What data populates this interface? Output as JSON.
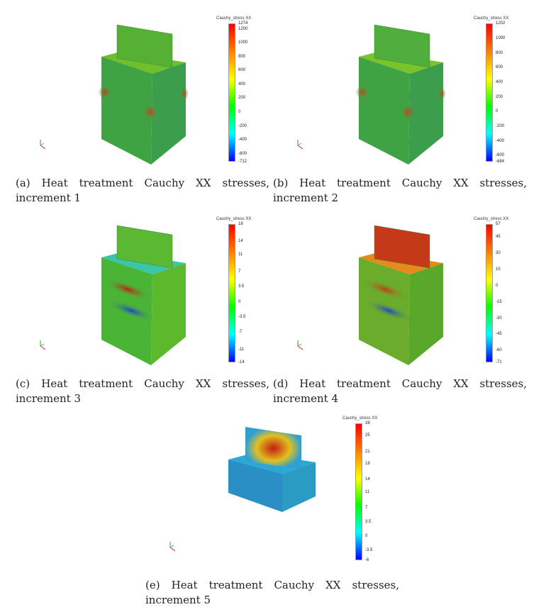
{
  "figures": [
    {
      "label": "(a)",
      "caption_line1": "(a) Heat treatment Cauchy XX stresses,",
      "caption_line2": "increment 1",
      "colorbar": {
        "title": "Cauchy_stress XX",
        "ticks": [
          "1274",
          "1200",
          "1000",
          "800",
          "600",
          "400",
          "200",
          "0",
          "-200",
          "-400",
          "-600",
          "-712"
        ],
        "min": -712,
        "max": 1274
      },
      "colors": {
        "top": "#6fbe2c",
        "left": "#3fa343",
        "right": "#3c9e4c",
        "plate": "#55b033",
        "hot": "#c8401c"
      }
    },
    {
      "label": "(b)",
      "caption_line1": "(b) Heat treatment Cauchy XX stresses,",
      "caption_line2": "increment 2",
      "colorbar": {
        "title": "Cauchy_stress XX",
        "ticks": [
          "1202",
          "1000",
          "800",
          "600",
          "400",
          "200",
          "0",
          "-200",
          "-400",
          "-600",
          "-684"
        ],
        "min": -684,
        "max": 1202
      },
      "colors": {
        "top": "#79c42a",
        "left": "#3fa343",
        "right": "#3c9e4c",
        "plate": "#4fae3c",
        "hot": "#c8401c"
      }
    },
    {
      "label": "(c)",
      "caption_line1": "(c) Heat treatment Cauchy XX stresses,",
      "caption_line2": "increment 3",
      "colorbar": {
        "title": "Cauchy_stress XX",
        "ticks": [
          "18",
          "14",
          "11",
          "7",
          "3.5",
          "0",
          "-3.5",
          "-7",
          "-11",
          "-14"
        ],
        "min": -14,
        "max": 18
      },
      "colors": {
        "top": "#3cc6a8",
        "left": "#4ab437",
        "right": "#5cb92c",
        "plate": "#5bb832",
        "hot": "#c41e10",
        "cold": "#2244cc"
      }
    },
    {
      "label": "(d)",
      "caption_line1": "(d) Heat treatment Cauchy XX stresses,",
      "caption_line2": "increment 4",
      "colorbar": {
        "title": "Cauchy_stress XX",
        "ticks": [
          "57",
          "45",
          "30",
          "15",
          "0",
          "-15",
          "-30",
          "-45",
          "-60",
          "-71"
        ],
        "min": -71,
        "max": 57
      },
      "colors": {
        "top": "#e68a1a",
        "left": "#6aac2c",
        "right": "#5aa82a",
        "plate": "#c43a18",
        "hot": "#c83a18",
        "cold": "#2244cc"
      }
    },
    {
      "label": "(e)",
      "caption_line1": "(e) Heat treatment Cauchy XX stresses,",
      "caption_line2": "increment 5",
      "colorbar": {
        "title": "Cauchy_stress XX",
        "ticks": [
          "28",
          "25",
          "21",
          "18",
          "14",
          "11",
          "7",
          "3.5",
          "0",
          "-3.5",
          "-6"
        ],
        "min": -6,
        "max": 28
      },
      "colors": {
        "top": "#2aa8d8",
        "left": "#2a8fc4",
        "right": "#2a9cc4",
        "plate": "#e0a020",
        "hot": "#c41e10",
        "cold": "#1a3ccc"
      }
    }
  ]
}
